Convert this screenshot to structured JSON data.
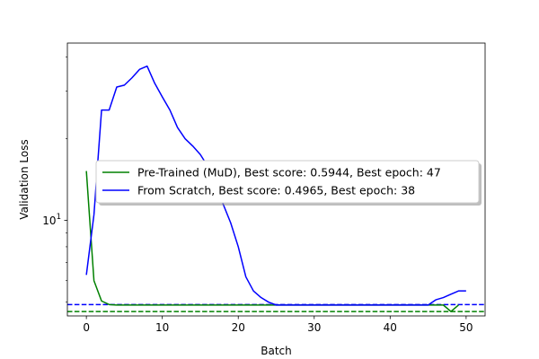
{
  "chart_data": {
    "type": "line",
    "title": "",
    "xlabel": "Batch",
    "ylabel": "Validation Loss",
    "xlim": [
      -2.5,
      52.5
    ],
    "ylim": [
      4.45,
      45
    ],
    "yscale": "log",
    "x_ticks": [
      0,
      10,
      20,
      30,
      40,
      50
    ],
    "x_tick_labels": [
      "0",
      "10",
      "20",
      "30",
      "40",
      "50"
    ],
    "y_ticks": [
      10
    ],
    "y_tick_labels": [
      "10¹"
    ],
    "grid": false,
    "legend": {
      "placement": "center-right",
      "shadow": true
    },
    "series": [
      {
        "name": "Pre-Trained (MuD), Best score: 0.5944, Best epoch: 47",
        "color": "#008000",
        "x": [
          0,
          1,
          2,
          3,
          4,
          5,
          6,
          7,
          8,
          9,
          10,
          11,
          12,
          13,
          14,
          15,
          16,
          17,
          18,
          19,
          20,
          21,
          22,
          23,
          24,
          25,
          26,
          27,
          28,
          29,
          30,
          31,
          32,
          33,
          34,
          35,
          36,
          37,
          38,
          39,
          40,
          41,
          42,
          43,
          44,
          45,
          46,
          47,
          48,
          49
        ],
        "y": [
          15.2,
          6.0,
          5.05,
          4.9,
          4.88,
          4.88,
          4.88,
          4.88,
          4.88,
          4.88,
          4.88,
          4.88,
          4.88,
          4.88,
          4.88,
          4.88,
          4.88,
          4.88,
          4.88,
          4.88,
          4.88,
          4.88,
          4.88,
          4.88,
          4.88,
          4.88,
          4.88,
          4.88,
          4.88,
          4.88,
          4.88,
          4.88,
          4.88,
          4.88,
          4.88,
          4.88,
          4.88,
          4.88,
          4.88,
          4.88,
          4.88,
          4.88,
          4.88,
          4.88,
          4.88,
          4.88,
          4.88,
          4.88,
          4.62,
          4.88
        ]
      },
      {
        "name": "From Scratch, Best score: 0.4965, Best epoch: 38",
        "color": "#0000ff",
        "x": [
          0,
          1,
          2,
          3,
          4,
          5,
          6,
          7,
          8,
          9,
          10,
          11,
          12,
          13,
          14,
          15,
          16,
          17,
          18,
          19,
          20,
          21,
          22,
          23,
          24,
          25,
          26,
          27,
          28,
          29,
          30,
          31,
          32,
          33,
          34,
          35,
          36,
          37,
          38,
          39,
          40,
          41,
          42,
          43,
          44,
          45,
          46,
          47,
          48,
          49,
          50
        ],
        "y": [
          6.3,
          10.5,
          25.5,
          25.5,
          31.0,
          31.5,
          33.5,
          36.0,
          37.0,
          32.0,
          28.5,
          25.5,
          22.0,
          20.0,
          18.8,
          17.5,
          15.8,
          13.5,
          11.5,
          9.8,
          8.0,
          6.2,
          5.5,
          5.2,
          5.0,
          4.88,
          4.88,
          4.88,
          4.88,
          4.88,
          4.88,
          4.88,
          4.88,
          4.88,
          4.88,
          4.88,
          4.88,
          4.88,
          4.88,
          4.88,
          4.88,
          4.88,
          4.88,
          4.88,
          4.88,
          4.88,
          5.1,
          5.2,
          5.35,
          5.5,
          5.5
        ]
      }
    ],
    "reference_lines": [
      {
        "y": 4.9,
        "color": "#0000ff",
        "style": "dashed"
      },
      {
        "y": 4.62,
        "color": "#008000",
        "style": "dashed"
      }
    ]
  }
}
